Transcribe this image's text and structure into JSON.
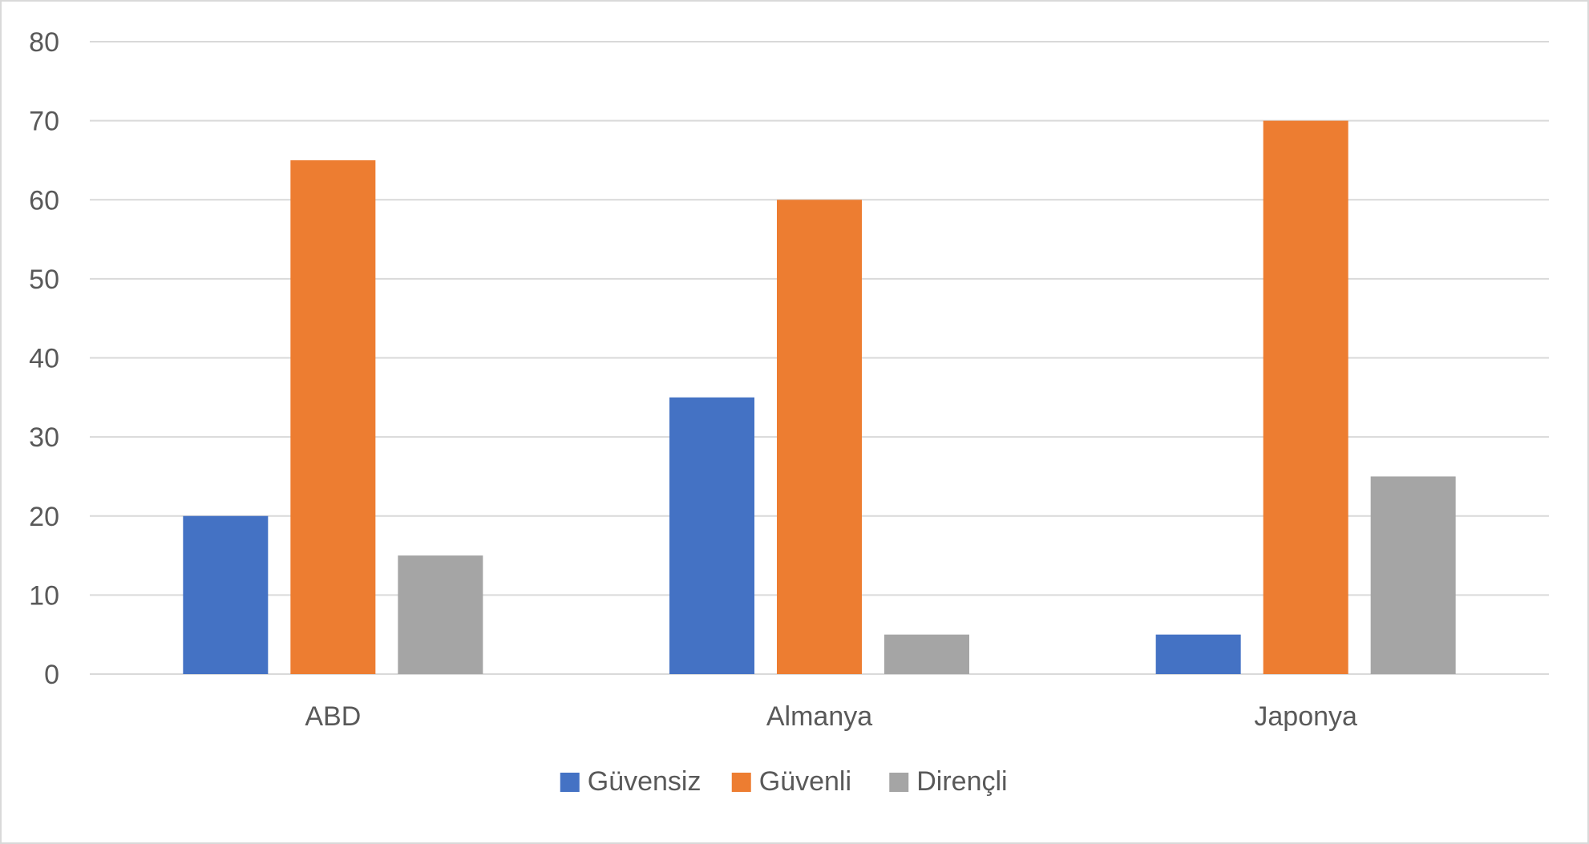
{
  "chart_data": {
    "type": "bar",
    "categories": [
      "ABD",
      "Almanya",
      "Japonya"
    ],
    "series": [
      {
        "name": "Güvensiz",
        "values": [
          20,
          35,
          5
        ],
        "color": "#4472C4"
      },
      {
        "name": "Güvenli",
        "values": [
          65,
          60,
          70
        ],
        "color": "#ED7D31"
      },
      {
        "name": "Dirençli",
        "values": [
          15,
          5,
          25
        ],
        "color": "#A5A5A5"
      }
    ],
    "ylim": [
      0,
      80
    ],
    "yticks": [
      0,
      10,
      20,
      30,
      40,
      50,
      60,
      70,
      80
    ],
    "title": "",
    "xlabel": "",
    "ylabel": "",
    "grid": true,
    "gridline_color": "#D9D9D9",
    "legend_position": "bottom"
  }
}
